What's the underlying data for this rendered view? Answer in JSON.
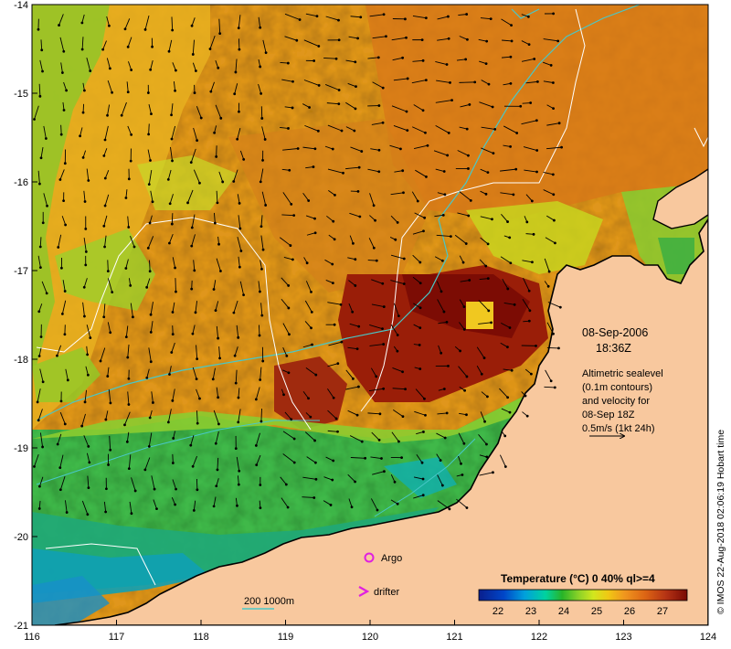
{
  "map": {
    "lon_ticks": [
      "116",
      "117",
      "118",
      "119",
      "120",
      "121",
      "122",
      "123",
      "124"
    ],
    "lat_ticks": [
      "-14",
      "-15",
      "-16",
      "-17",
      "-18",
      "-19",
      "-20",
      "-21"
    ],
    "date": "08-Sep-2006",
    "time": "18:36Z",
    "sealevel_lines": [
      "Altimetric sealevel",
      "(0.1m contours)",
      "and velocity for",
      "08-Sep 18Z",
      "0.5m/s (1kt 24h)"
    ],
    "legend": {
      "argo": "Argo",
      "drifter": "drifter"
    },
    "bathymetry_label": "200  1000m",
    "colorbar": {
      "title": "Temperature (°C) 0 40% ql>=4",
      "labels": [
        "22",
        "23",
        "24",
        "25",
        "26",
        "27"
      ],
      "colors": [
        "#0a1e8c",
        "#0046c8",
        "#00a0dc",
        "#00d2a0",
        "#28b428",
        "#8cd228",
        "#d2e61e",
        "#f0c814",
        "#f0961e",
        "#dc6414",
        "#b43214",
        "#961e0a",
        "#780a05"
      ]
    },
    "credit": "© IMOS 22-Aug-2018 02:06:19 Hobart time"
  }
}
